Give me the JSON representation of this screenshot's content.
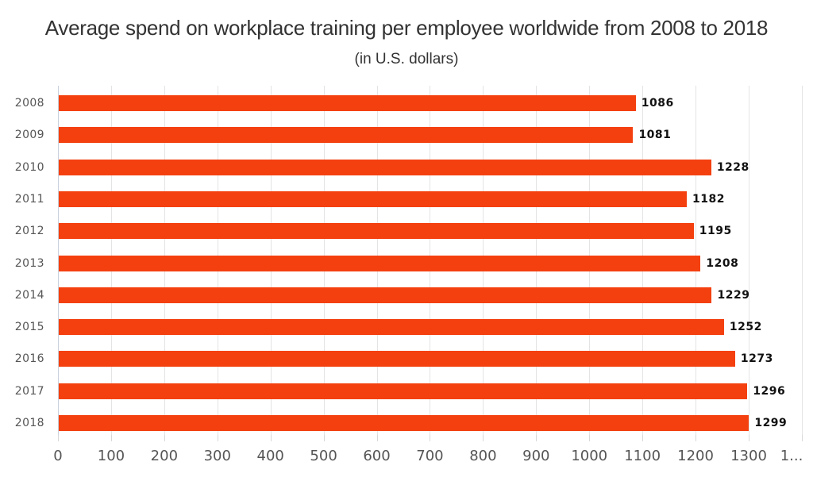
{
  "chart_data": {
    "type": "bar",
    "orientation": "horizontal",
    "title": "Average spend on workplace training per employee worldwide from 2008 to 2018",
    "subtitle": "(in U.S. dollars)",
    "xlabel": "",
    "ylabel": "",
    "categories": [
      "2008",
      "2009",
      "2010",
      "2011",
      "2012",
      "2013",
      "2014",
      "2015",
      "2016",
      "2017",
      "2018"
    ],
    "values": [
      1086,
      1081,
      1228,
      1182,
      1195,
      1208,
      1229,
      1252,
      1273,
      1296,
      1299
    ],
    "xlim": [
      0,
      1400
    ],
    "x_ticks": [
      "0",
      "100",
      "200",
      "300",
      "400",
      "500",
      "600",
      "700",
      "800",
      "900",
      "1000",
      "1100",
      "1200",
      "1300",
      "1..."
    ],
    "grid": true,
    "legend": null,
    "data_labels": true,
    "bar_color": "#f4400f"
  }
}
